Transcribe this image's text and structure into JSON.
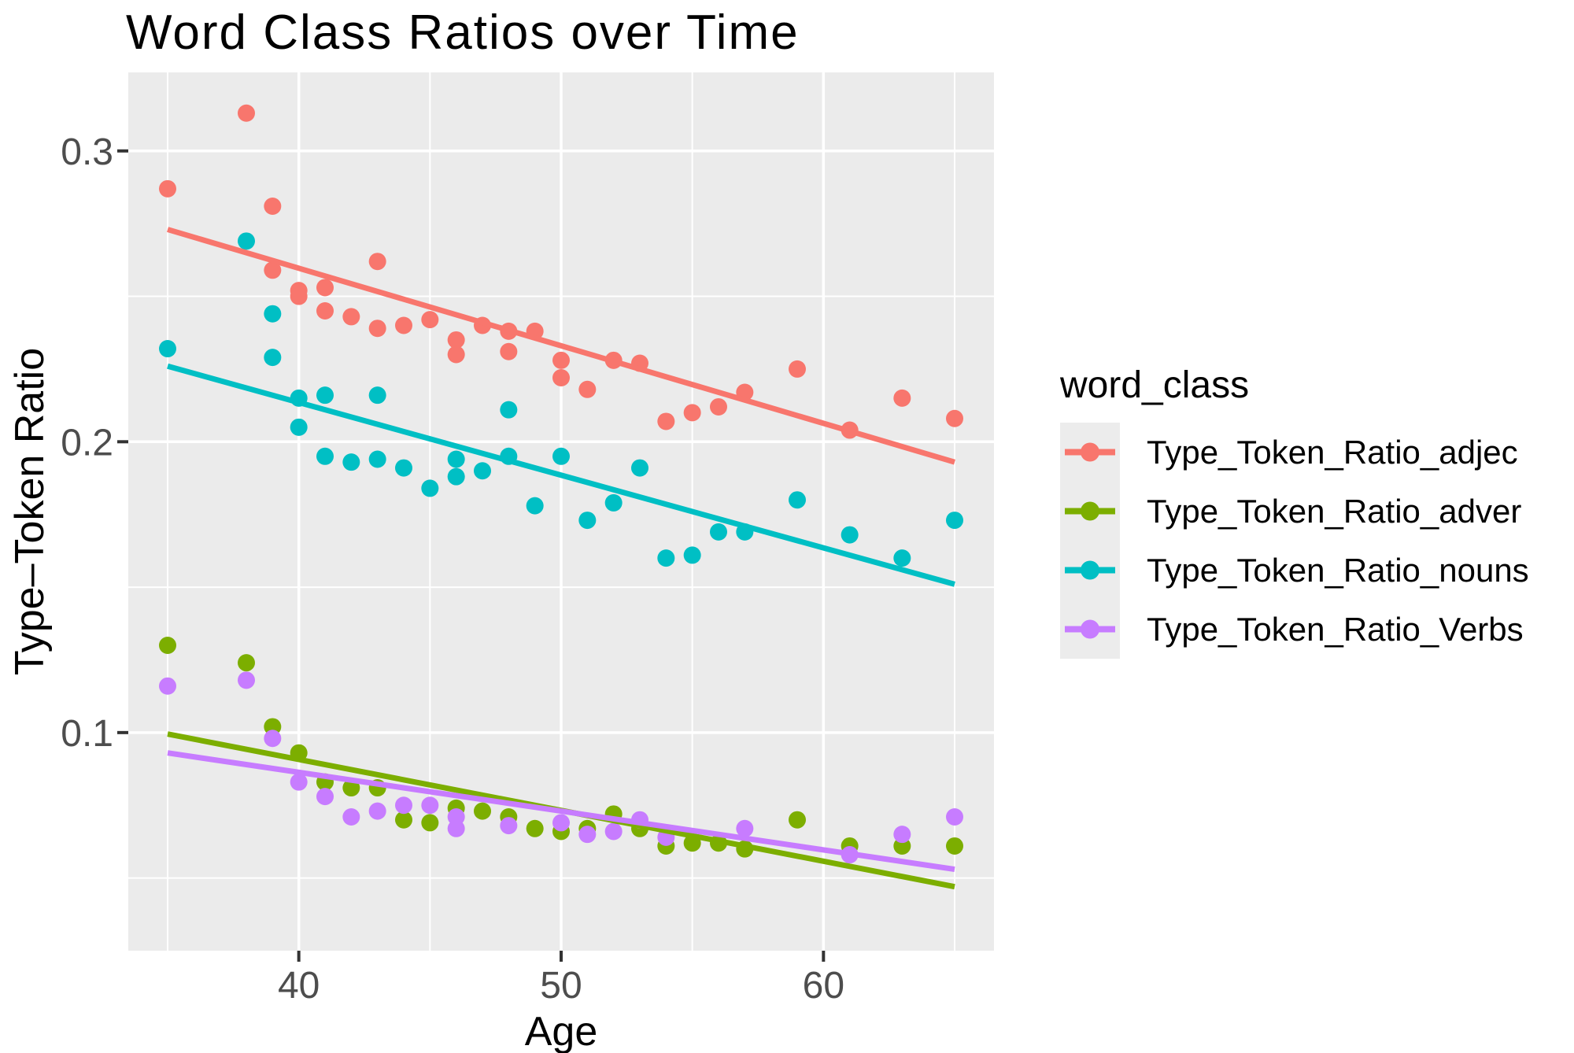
{
  "title": "Word Class Ratios over Time",
  "axes": {
    "x": {
      "label": "Age",
      "domain": [
        33.5,
        66.5
      ],
      "ticks": [
        40,
        50,
        60
      ],
      "tick_labels": [
        "40",
        "50",
        "60"
      ],
      "minor_ticks": [
        35,
        45,
        55,
        65
      ]
    },
    "y": {
      "label": "Type–Token Ratio",
      "domain": [
        0.025,
        0.327
      ],
      "ticks": [
        0.1,
        0.2,
        0.3
      ],
      "tick_labels": [
        "0.1",
        "0.2",
        "0.3"
      ],
      "minor_ticks": [
        0.05,
        0.15,
        0.25
      ]
    }
  },
  "legend": {
    "title": "word_class",
    "position": "right",
    "items": [
      {
        "label": "Type_Token_Ratio_adjec",
        "color": "#F8766D"
      },
      {
        "label": "Type_Token_Ratio_adver",
        "color": "#7CAE00"
      },
      {
        "label": "Type_Token_Ratio_nouns",
        "color": "#00BFC4"
      },
      {
        "label": "Type_Token_Ratio_Verbs",
        "color": "#C77CFF"
      }
    ]
  },
  "style": {
    "panel_background": "#EBEBEB",
    "gridline_color": "#FFFFFF",
    "tick_mark_color": "#333333",
    "tick_label_color": "#4D4D4D",
    "point_radius": 11,
    "trend_line_width": 7
  },
  "chart_data": {
    "type": "scatter",
    "title": "Word Class Ratios over Time",
    "xlabel": "Age",
    "ylabel": "Type–Token Ratio",
    "xlim": [
      33.5,
      66.5
    ],
    "ylim": [
      0.025,
      0.327
    ],
    "grid": true,
    "legend_position": "right",
    "series": [
      {
        "name": "Type_Token_Ratio_adjec",
        "color": "#F8766D",
        "points": [
          [
            35,
            0.287
          ],
          [
            38,
            0.313
          ],
          [
            39,
            0.281
          ],
          [
            39,
            0.259
          ],
          [
            40,
            0.252
          ],
          [
            40,
            0.25
          ],
          [
            41,
            0.253
          ],
          [
            41,
            0.245
          ],
          [
            42,
            0.243
          ],
          [
            43,
            0.262
          ],
          [
            43,
            0.239
          ],
          [
            44,
            0.24
          ],
          [
            45,
            0.242
          ],
          [
            46,
            0.235
          ],
          [
            46,
            0.23
          ],
          [
            47,
            0.24
          ],
          [
            48,
            0.238
          ],
          [
            48,
            0.231
          ],
          [
            49,
            0.238
          ],
          [
            50,
            0.228
          ],
          [
            50,
            0.222
          ],
          [
            51,
            0.218
          ],
          [
            52,
            0.228
          ],
          [
            53,
            0.227
          ],
          [
            54,
            0.207
          ],
          [
            55,
            0.21
          ],
          [
            56,
            0.212
          ],
          [
            57,
            0.217
          ],
          [
            59,
            0.225
          ],
          [
            61,
            0.204
          ],
          [
            63,
            0.215
          ],
          [
            65,
            0.208
          ]
        ],
        "trend": {
          "x1": 35,
          "y1": 0.273,
          "x2": 65,
          "y2": 0.193
        }
      },
      {
        "name": "Type_Token_Ratio_adver",
        "color": "#7CAE00",
        "points": [
          [
            35,
            0.13
          ],
          [
            38,
            0.124
          ],
          [
            39,
            0.102
          ],
          [
            40,
            0.093
          ],
          [
            41,
            0.083
          ],
          [
            42,
            0.081
          ],
          [
            43,
            0.081
          ],
          [
            44,
            0.07
          ],
          [
            45,
            0.069
          ],
          [
            46,
            0.074
          ],
          [
            47,
            0.073
          ],
          [
            48,
            0.071
          ],
          [
            49,
            0.067
          ],
          [
            50,
            0.066
          ],
          [
            51,
            0.067
          ],
          [
            52,
            0.072
          ],
          [
            53,
            0.067
          ],
          [
            54,
            0.061
          ],
          [
            55,
            0.062
          ],
          [
            56,
            0.062
          ],
          [
            57,
            0.06
          ],
          [
            59,
            0.07
          ],
          [
            61,
            0.061
          ],
          [
            63,
            0.061
          ],
          [
            65,
            0.061
          ]
        ],
        "trend": {
          "x1": 35,
          "y1": 0.0995,
          "x2": 65,
          "y2": 0.047
        }
      },
      {
        "name": "Type_Token_Ratio_nouns",
        "color": "#00BFC4",
        "points": [
          [
            35,
            0.232
          ],
          [
            38,
            0.269
          ],
          [
            39,
            0.244
          ],
          [
            39,
            0.229
          ],
          [
            40,
            0.215
          ],
          [
            40,
            0.205
          ],
          [
            41,
            0.216
          ],
          [
            41,
            0.195
          ],
          [
            42,
            0.193
          ],
          [
            43,
            0.216
          ],
          [
            43,
            0.194
          ],
          [
            44,
            0.191
          ],
          [
            45,
            0.184
          ],
          [
            46,
            0.194
          ],
          [
            46,
            0.188
          ],
          [
            47,
            0.19
          ],
          [
            48,
            0.211
          ],
          [
            48,
            0.195
          ],
          [
            49,
            0.178
          ],
          [
            50,
            0.195
          ],
          [
            51,
            0.173
          ],
          [
            52,
            0.179
          ],
          [
            53,
            0.191
          ],
          [
            54,
            0.16
          ],
          [
            55,
            0.161
          ],
          [
            56,
            0.169
          ],
          [
            57,
            0.169
          ],
          [
            59,
            0.18
          ],
          [
            61,
            0.168
          ],
          [
            63,
            0.16
          ],
          [
            65,
            0.173
          ]
        ],
        "trend": {
          "x1": 35,
          "y1": 0.226,
          "x2": 65,
          "y2": 0.151
        }
      },
      {
        "name": "Type_Token_Ratio_Verbs",
        "color": "#C77CFF",
        "points": [
          [
            35,
            0.116
          ],
          [
            38,
            0.118
          ],
          [
            39,
            0.098
          ],
          [
            40,
            0.083
          ],
          [
            41,
            0.078
          ],
          [
            42,
            0.071
          ],
          [
            43,
            0.073
          ],
          [
            44,
            0.075
          ],
          [
            45,
            0.075
          ],
          [
            46,
            0.071
          ],
          [
            46,
            0.067
          ],
          [
            48,
            0.068
          ],
          [
            50,
            0.069
          ],
          [
            51,
            0.065
          ],
          [
            52,
            0.066
          ],
          [
            53,
            0.07
          ],
          [
            54,
            0.064
          ],
          [
            57,
            0.067
          ],
          [
            61,
            0.058
          ],
          [
            63,
            0.065
          ],
          [
            65,
            0.071
          ]
        ],
        "trend": {
          "x1": 35,
          "y1": 0.093,
          "x2": 65,
          "y2": 0.053
        }
      }
    ]
  }
}
